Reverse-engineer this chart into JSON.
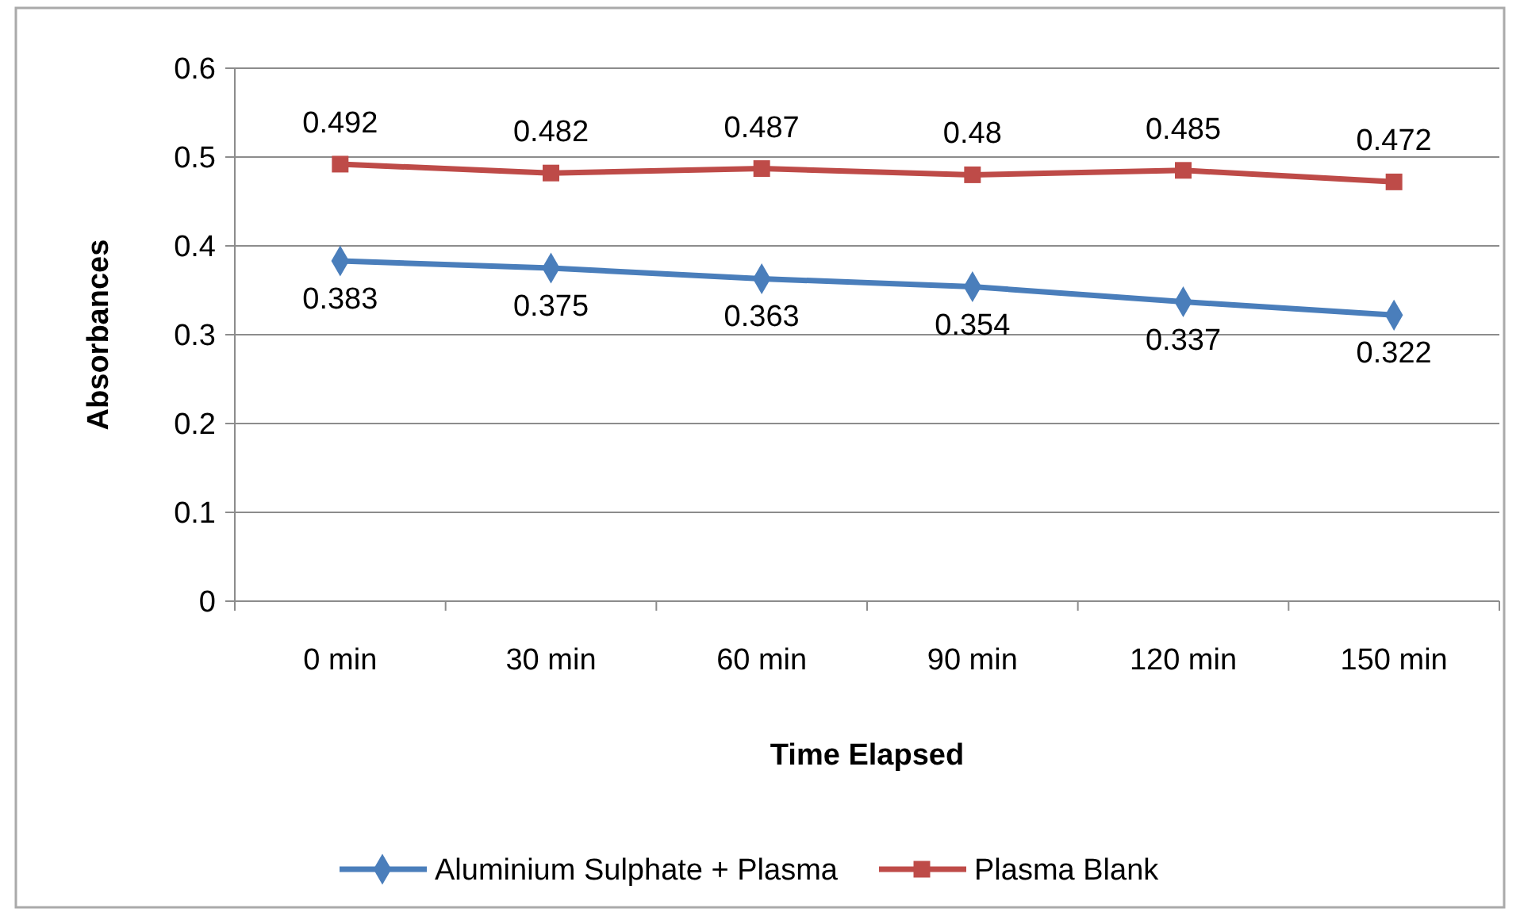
{
  "chart_data": {
    "type": "line",
    "xlabel": "Time Elapsed",
    "ylabel": "Absorbances",
    "categories": [
      "0 min",
      "30 min",
      "60 min",
      "90 min",
      "120 min",
      "150 min"
    ],
    "series": [
      {
        "name": "Aluminium Sulphate + Plasma",
        "color": "#4a7ebb",
        "marker": "diamond",
        "values": [
          0.383,
          0.375,
          0.363,
          0.354,
          0.337,
          0.322
        ]
      },
      {
        "name": "Plasma Blank",
        "color": "#be4b48",
        "marker": "square",
        "values": [
          0.492,
          0.482,
          0.487,
          0.48,
          0.485,
          0.472
        ]
      }
    ],
    "ylim": [
      0,
      0.6
    ],
    "yticks": [
      0,
      0.1,
      0.2,
      0.3,
      0.4,
      0.5,
      0.6
    ],
    "grid": "y",
    "legend": "bottom",
    "data_labels": true,
    "line_style": "solid"
  }
}
